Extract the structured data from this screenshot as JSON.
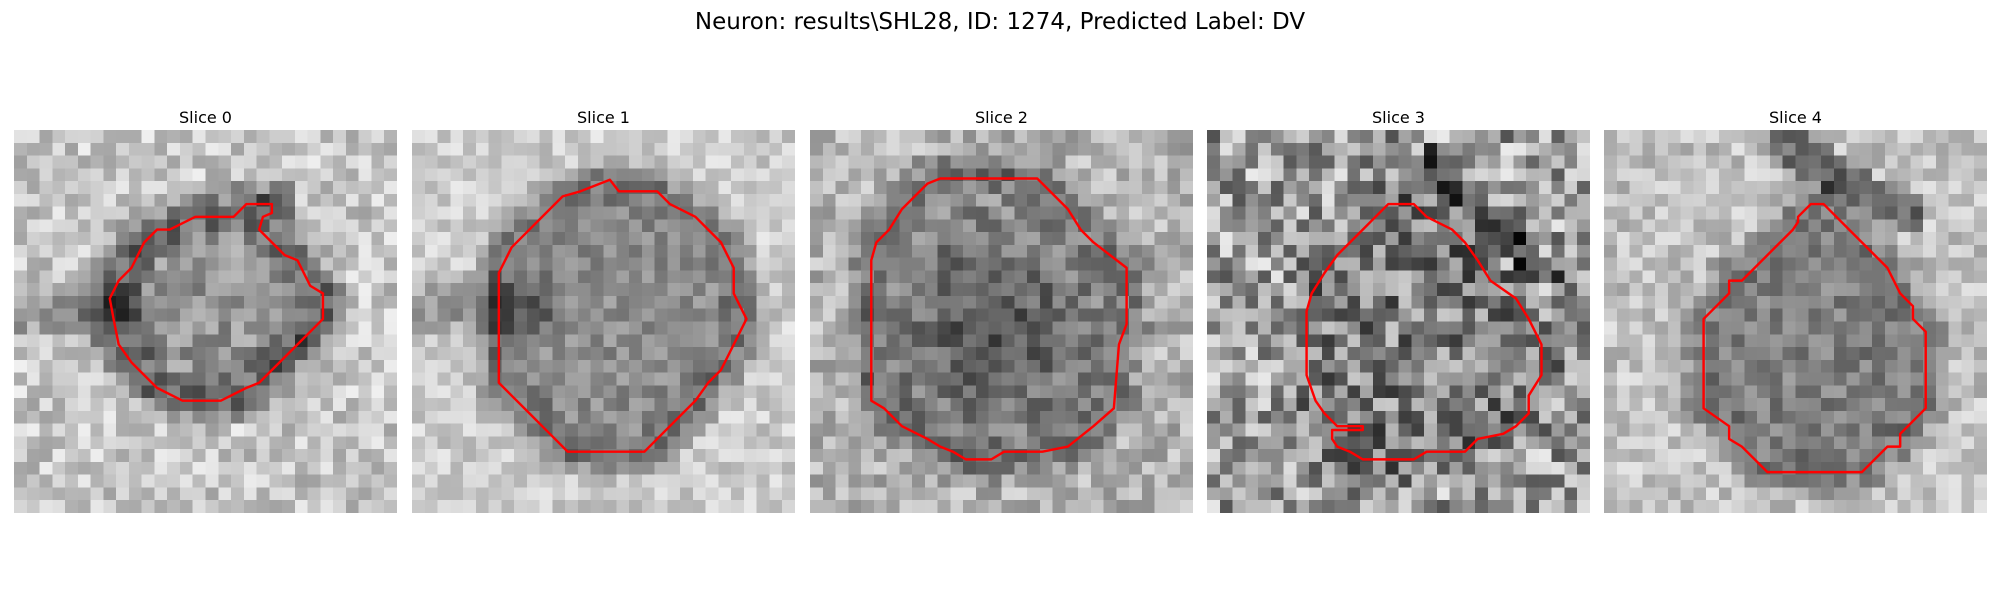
{
  "figure": {
    "title": "Neuron: results\\SHL28, ID: 1274, Predicted Label: DV"
  },
  "colors": {
    "background": "#ffffff",
    "text": "#000000",
    "contour": "#ff0000",
    "colormap": "gray"
  },
  "image_grid": {
    "rows": 30,
    "cols": 30
  },
  "slices": [
    {
      "title": "Slice 0",
      "contour": [
        [
          18.2,
          5.8
        ],
        [
          20.2,
          5.8
        ],
        [
          20.2,
          6.5
        ],
        [
          19.5,
          6.8
        ],
        [
          19.2,
          7.8
        ],
        [
          20.2,
          8.8
        ],
        [
          21.2,
          9.8
        ],
        [
          22.2,
          10.2
        ],
        [
          23.2,
          12.2
        ],
        [
          24.2,
          12.8
        ],
        [
          24.2,
          14.8
        ],
        [
          23.2,
          15.8
        ],
        [
          22.2,
          16.8
        ],
        [
          20.2,
          18.8
        ],
        [
          19.2,
          19.8
        ],
        [
          18.2,
          20.2
        ],
        [
          16.2,
          21.2
        ],
        [
          13.2,
          21.2
        ],
        [
          11.2,
          20.2
        ],
        [
          10.2,
          19.2
        ],
        [
          9.2,
          18.2
        ],
        [
          8.2,
          16.8
        ],
        [
          7.8,
          14.8
        ],
        [
          7.5,
          13.2
        ],
        [
          8.2,
          11.8
        ],
        [
          9.2,
          10.8
        ],
        [
          10.2,
          8.8
        ],
        [
          11.2,
          7.8
        ],
        [
          12.2,
          7.8
        ],
        [
          14.2,
          6.8
        ],
        [
          17.2,
          6.8
        ]
      ]
    },
    {
      "title": "Slice 1",
      "contour": [
        [
          13.2,
          4.8
        ],
        [
          15.5,
          3.9
        ],
        [
          16.2,
          4.8
        ],
        [
          19.2,
          4.8
        ],
        [
          20.2,
          5.8
        ],
        [
          22.2,
          6.8
        ],
        [
          23.2,
          7.8
        ],
        [
          24.2,
          8.8
        ],
        [
          25.2,
          10.8
        ],
        [
          25.2,
          12.8
        ],
        [
          26.2,
          14.8
        ],
        [
          25.2,
          16.8
        ],
        [
          24.2,
          18.8
        ],
        [
          23.2,
          19.8
        ],
        [
          22.2,
          21.2
        ],
        [
          21.2,
          22.2
        ],
        [
          19.2,
          24.2
        ],
        [
          18.2,
          25.2
        ],
        [
          12.2,
          25.2
        ],
        [
          11.2,
          24.2
        ],
        [
          10.2,
          23.2
        ],
        [
          9.2,
          22.2
        ],
        [
          7.8,
          20.8
        ],
        [
          6.8,
          19.8
        ],
        [
          6.8,
          11.2
        ],
        [
          7.8,
          9.2
        ],
        [
          8.8,
          8.2
        ],
        [
          9.8,
          7.2
        ],
        [
          10.8,
          6.2
        ],
        [
          11.8,
          5.2
        ]
      ]
    },
    {
      "title": "Slice 2",
      "contour": [
        [
          10.2,
          3.8
        ],
        [
          17.8,
          3.8
        ],
        [
          18.8,
          4.8
        ],
        [
          20.2,
          6.2
        ],
        [
          21.2,
          7.8
        ],
        [
          22.2,
          8.8
        ],
        [
          24.8,
          10.8
        ],
        [
          24.8,
          15.2
        ],
        [
          24.2,
          16.8
        ],
        [
          23.8,
          21.8
        ],
        [
          22.2,
          23.2
        ],
        [
          20.2,
          24.8
        ],
        [
          18.2,
          25.2
        ],
        [
          15.2,
          25.2
        ],
        [
          14.2,
          25.8
        ],
        [
          12.2,
          25.8
        ],
        [
          11.2,
          25.2
        ],
        [
          10.2,
          24.8
        ],
        [
          9.2,
          24.2
        ],
        [
          7.2,
          23.2
        ],
        [
          5.8,
          21.8
        ],
        [
          4.8,
          21.2
        ],
        [
          4.8,
          10.2
        ],
        [
          5.2,
          8.8
        ],
        [
          6.2,
          7.8
        ],
        [
          7.2,
          6.2
        ],
        [
          8.2,
          5.2
        ],
        [
          9.2,
          4.2
        ]
      ]
    },
    {
      "title": "Slice 3",
      "contour": [
        [
          14.2,
          5.8
        ],
        [
          16.2,
          5.8
        ],
        [
          17.2,
          6.8
        ],
        [
          19.2,
          7.8
        ],
        [
          20.2,
          8.8
        ],
        [
          21.2,
          10.2
        ],
        [
          22.2,
          11.8
        ],
        [
          24.2,
          13.2
        ],
        [
          25.2,
          14.8
        ],
        [
          26.2,
          16.8
        ],
        [
          26.2,
          19.2
        ],
        [
          25.2,
          20.8
        ],
        [
          25.2,
          22.2
        ],
        [
          24.2,
          23.2
        ],
        [
          23.2,
          23.8
        ],
        [
          21.2,
          24.2
        ],
        [
          20.2,
          25.2
        ],
        [
          17.2,
          25.2
        ],
        [
          16.2,
          25.8
        ],
        [
          12.2,
          25.8
        ],
        [
          11.2,
          25.2
        ],
        [
          10.2,
          24.8
        ],
        [
          9.8,
          24.2
        ],
        [
          9.8,
          23.5
        ],
        [
          12.2,
          23.5
        ],
        [
          12.2,
          23.2
        ],
        [
          10.2,
          23.2
        ],
        [
          9.2,
          22.2
        ],
        [
          8.5,
          21.2
        ],
        [
          7.8,
          19.2
        ],
        [
          7.8,
          14.2
        ],
        [
          8.2,
          12.8
        ],
        [
          9.2,
          11.2
        ],
        [
          10.2,
          9.8
        ],
        [
          11.2,
          8.8
        ],
        [
          12.2,
          7.8
        ],
        [
          13.2,
          6.8
        ]
      ]
    },
    {
      "title": "Slice 4",
      "contour": [
        [
          16.2,
          5.8
        ],
        [
          17.2,
          5.8
        ],
        [
          18.2,
          6.8
        ],
        [
          19.2,
          7.8
        ],
        [
          20.2,
          8.8
        ],
        [
          21.2,
          9.8
        ],
        [
          22.2,
          10.8
        ],
        [
          23.2,
          12.8
        ],
        [
          24.2,
          13.8
        ],
        [
          24.2,
          14.8
        ],
        [
          25.2,
          15.8
        ],
        [
          25.2,
          21.8
        ],
        [
          24.2,
          22.8
        ],
        [
          23.2,
          23.8
        ],
        [
          23.2,
          24.8
        ],
        [
          22.2,
          24.8
        ],
        [
          21.2,
          25.8
        ],
        [
          20.2,
          26.8
        ],
        [
          12.8,
          26.8
        ],
        [
          11.8,
          25.8
        ],
        [
          10.8,
          24.8
        ],
        [
          9.8,
          24.2
        ],
        [
          9.8,
          23.2
        ],
        [
          7.8,
          21.8
        ],
        [
          7.8,
          14.8
        ],
        [
          8.8,
          13.8
        ],
        [
          9.8,
          12.8
        ],
        [
          9.8,
          11.8
        ],
        [
          10.8,
          11.8
        ],
        [
          11.8,
          10.8
        ],
        [
          12.8,
          9.8
        ],
        [
          13.8,
          8.8
        ],
        [
          14.8,
          7.8
        ],
        [
          15.2,
          7.2
        ],
        [
          15.2,
          6.8
        ]
      ]
    }
  ]
}
